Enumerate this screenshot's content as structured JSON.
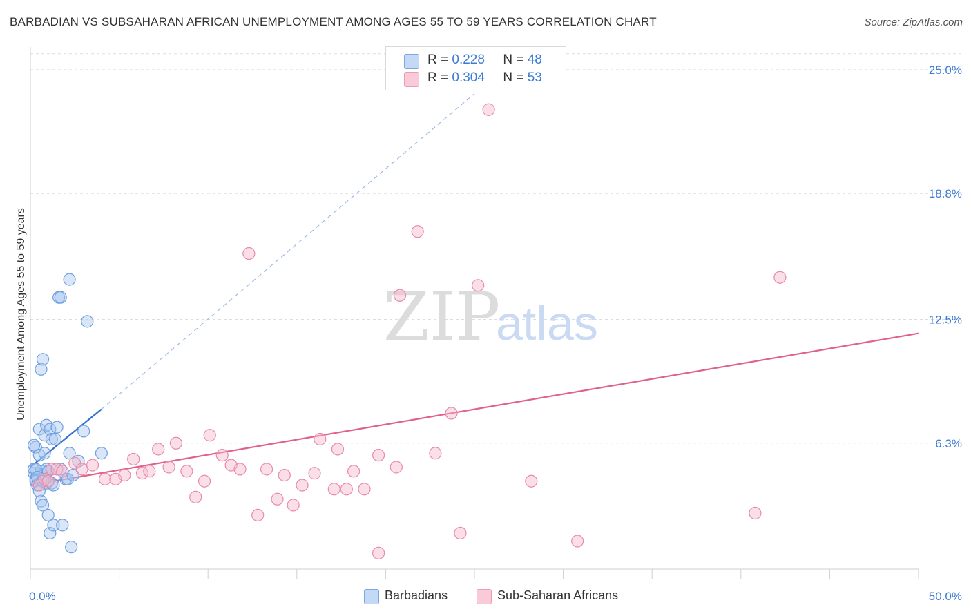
{
  "title": "BARBADIAN VS SUBSAHARAN AFRICAN UNEMPLOYMENT AMONG AGES 55 TO 59 YEARS CORRELATION CHART",
  "source": "Source: ZipAtlas.com",
  "watermark": {
    "zip": "ZIP",
    "atlas": "atlas"
  },
  "legend": {
    "r_label": "R =",
    "n_label": "N =",
    "items": [
      {
        "name": "Barbadians",
        "r": "0.228",
        "n": "48",
        "color": "#a9c8f0",
        "stroke": "#6f9fe0"
      },
      {
        "name": "Sub-Saharan Africans",
        "r": "0.304",
        "n": "53",
        "color": "#f6b9cc",
        "stroke": "#e88aa8"
      }
    ]
  },
  "chart_data": {
    "type": "scatter",
    "title": "BARBADIAN VS SUBSAHARAN AFRICAN UNEMPLOYMENT AMONG AGES 55 TO 59 YEARS CORRELATION CHART",
    "xlabel": "",
    "ylabel": "Unemployment Among Ages 55 to 59 years",
    "xlim": [
      0,
      50
    ],
    "ylim": [
      0,
      26
    ],
    "x_tick_labels": [
      {
        "value": 0,
        "label": "0.0%"
      },
      {
        "value": 50,
        "label": "50.0%"
      }
    ],
    "y_tick_labels": [
      {
        "value": 6.3,
        "label": "6.3%"
      },
      {
        "value": 12.5,
        "label": "12.5%"
      },
      {
        "value": 18.8,
        "label": "18.8%"
      },
      {
        "value": 25.0,
        "label": "25.0%"
      }
    ],
    "series": [
      {
        "name": "Barbadians",
        "color": "#6f9fe0",
        "fill": "#a9c8f0",
        "trend_color": "#2f6fd0",
        "trend": {
          "x0": 0,
          "y0": 5.1,
          "x1": 4.0,
          "y1": 8.0,
          "dash_x1": 25.0,
          "dash_y1": 23.8
        },
        "points": [
          [
            0.2,
            4.8
          ],
          [
            0.3,
            4.5
          ],
          [
            0.2,
            5.0
          ],
          [
            0.3,
            4.4
          ],
          [
            0.4,
            4.2
          ],
          [
            0.3,
            6.1
          ],
          [
            0.5,
            5.7
          ],
          [
            0.5,
            7.0
          ],
          [
            0.6,
            3.4
          ],
          [
            0.6,
            4.9
          ],
          [
            0.6,
            10.0
          ],
          [
            0.7,
            10.5
          ],
          [
            0.7,
            3.2
          ],
          [
            0.8,
            5.8
          ],
          [
            0.8,
            6.7
          ],
          [
            0.9,
            7.2
          ],
          [
            0.9,
            4.3
          ],
          [
            0.9,
            5.0
          ],
          [
            1.0,
            2.7
          ],
          [
            1.0,
            4.9
          ],
          [
            1.1,
            7.0
          ],
          [
            1.1,
            1.8
          ],
          [
            1.2,
            6.5
          ],
          [
            1.2,
            4.3
          ],
          [
            1.3,
            4.2
          ],
          [
            1.3,
            2.2
          ],
          [
            1.4,
            6.5
          ],
          [
            1.5,
            7.1
          ],
          [
            1.6,
            13.6
          ],
          [
            1.7,
            13.6
          ],
          [
            1.7,
            5.0
          ],
          [
            1.8,
            2.2
          ],
          [
            2.0,
            4.5
          ],
          [
            2.1,
            4.5
          ],
          [
            2.2,
            14.5
          ],
          [
            2.2,
            5.8
          ],
          [
            2.3,
            1.1
          ],
          [
            2.4,
            4.7
          ],
          [
            2.7,
            5.4
          ],
          [
            3.0,
            6.9
          ],
          [
            3.2,
            12.4
          ],
          [
            4.0,
            5.8
          ],
          [
            0.3,
            5.0
          ],
          [
            0.4,
            4.6
          ],
          [
            0.5,
            3.9
          ],
          [
            0.7,
            4.4
          ],
          [
            0.2,
            6.2
          ],
          [
            1.0,
            4.9
          ]
        ]
      },
      {
        "name": "Sub-Saharan Africans",
        "color": "#e88aa8",
        "fill": "#f6b9cc",
        "trend_color": "#e0628a",
        "trend": {
          "x0": 0,
          "y0": 4.2,
          "x1": 50,
          "y1": 11.8
        },
        "points": [
          [
            0.5,
            4.2
          ],
          [
            0.8,
            4.5
          ],
          [
            1.0,
            4.4
          ],
          [
            1.2,
            5.0
          ],
          [
            1.5,
            5.0
          ],
          [
            1.8,
            4.9
          ],
          [
            2.5,
            5.3
          ],
          [
            2.9,
            5.0
          ],
          [
            3.5,
            5.2
          ],
          [
            4.2,
            4.5
          ],
          [
            4.8,
            4.5
          ],
          [
            5.3,
            4.7
          ],
          [
            5.8,
            5.5
          ],
          [
            6.3,
            4.8
          ],
          [
            6.7,
            4.9
          ],
          [
            7.2,
            6.0
          ],
          [
            7.8,
            5.1
          ],
          [
            8.2,
            6.3
          ],
          [
            8.8,
            4.9
          ],
          [
            9.3,
            3.6
          ],
          [
            9.8,
            4.4
          ],
          [
            10.1,
            6.7
          ],
          [
            10.8,
            5.7
          ],
          [
            11.3,
            5.2
          ],
          [
            11.8,
            5.0
          ],
          [
            12.3,
            15.8
          ],
          [
            12.8,
            2.7
          ],
          [
            13.3,
            5.0
          ],
          [
            13.9,
            3.5
          ],
          [
            14.3,
            4.7
          ],
          [
            14.8,
            3.2
          ],
          [
            15.3,
            4.2
          ],
          [
            16.0,
            4.8
          ],
          [
            16.3,
            6.5
          ],
          [
            17.1,
            4.0
          ],
          [
            17.3,
            6.0
          ],
          [
            17.8,
            4.0
          ],
          [
            18.2,
            4.9
          ],
          [
            18.8,
            4.0
          ],
          [
            19.6,
            5.7
          ],
          [
            19.6,
            0.8
          ],
          [
            20.6,
            5.1
          ],
          [
            20.8,
            13.7
          ],
          [
            21.8,
            16.9
          ],
          [
            22.8,
            5.8
          ],
          [
            23.7,
            7.8
          ],
          [
            24.2,
            1.8
          ],
          [
            25.2,
            14.2
          ],
          [
            25.8,
            23.0
          ],
          [
            28.2,
            4.4
          ],
          [
            30.8,
            1.4
          ],
          [
            40.8,
            2.8
          ],
          [
            42.2,
            14.6
          ]
        ]
      }
    ]
  }
}
